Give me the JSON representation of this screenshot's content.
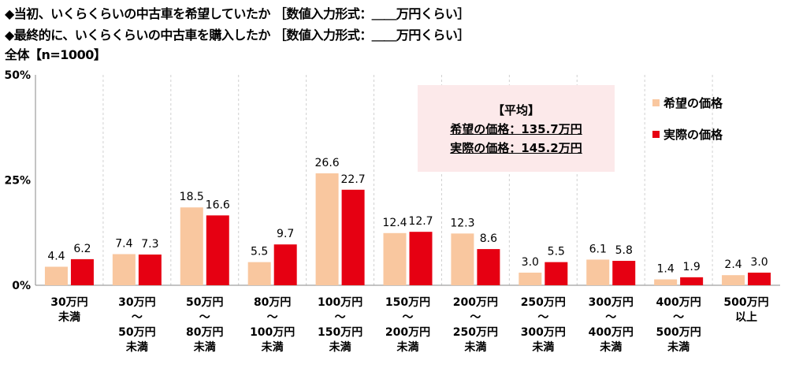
{
  "titles": [
    "◆当初、いくらくらいの中古車を希望していたか ［数値入力形式：＿＿万円くらい］",
    "◆最終的に、いくらくらいの中古車を購入したか ［数値入力形式：＿＿万円くらい］",
    "全体【n=1000】"
  ],
  "average_box": {
    "heading": "【平均】",
    "line1": "希望の価格：135.7万円",
    "line2": "実際の価格：145.2万円"
  },
  "chart_data": {
    "type": "bar",
    "categories": [
      "30万円\n未満",
      "30万円\n～\n50万円\n未満",
      "50万円\n～\n80万円\n未満",
      "80万円\n～\n100万円\n未満",
      "100万円\n～\n150万円\n未満",
      "150万円\n～\n200万円\n未満",
      "200万円\n～\n250万円\n未満",
      "250万円\n～\n300万円\n未満",
      "300万円\n～\n400万円\n未満",
      "400万円\n～\n500万円\n未満",
      "500万円\n以上"
    ],
    "series": [
      {
        "name": "希望の価格",
        "color": "#f9c79f",
        "values": [
          4.4,
          7.4,
          18.5,
          5.5,
          26.6,
          12.4,
          12.3,
          3.0,
          6.1,
          1.4,
          2.4
        ]
      },
      {
        "name": "実際の価格",
        "color": "#e60012",
        "values": [
          6.2,
          7.3,
          16.6,
          9.7,
          22.7,
          12.7,
          8.6,
          5.5,
          5.8,
          1.9,
          3.0
        ]
      }
    ],
    "yticks": [
      "0%",
      "25%",
      "50%"
    ],
    "ylim": [
      0,
      50
    ],
    "legend": "top-right",
    "grid": "vertical dashed separators"
  }
}
